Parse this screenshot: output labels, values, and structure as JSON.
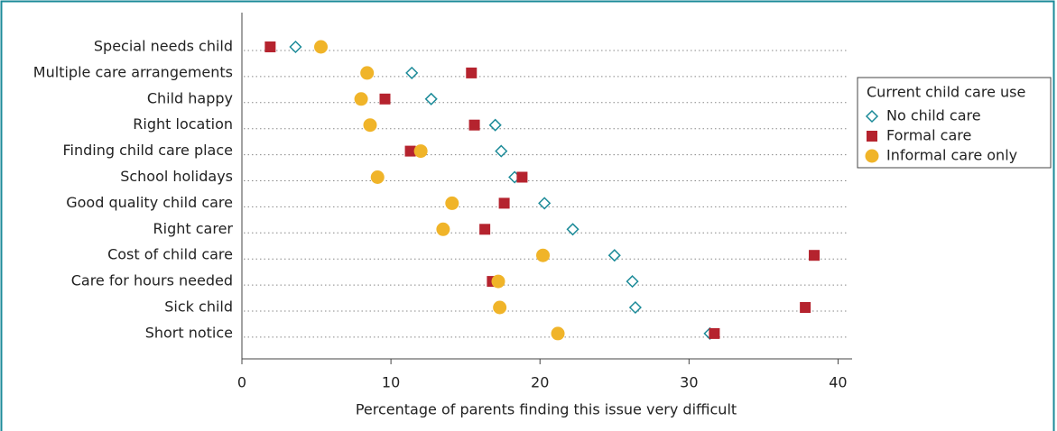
{
  "chart_data": {
    "type": "dot",
    "xlabel": "Percentage of parents finding this issue very difficult",
    "categories": [
      "Special needs child",
      "Multiple care arrangements",
      "Child happy",
      "Right location",
      "Finding child care place",
      "School holidays",
      "Good quality child care",
      "Right carer",
      "Cost of child care",
      "Care for hours needed",
      "Sick child",
      "Short notice"
    ],
    "series": [
      {
        "name": "No child care",
        "color": "#1b8a98",
        "marker": "diamond-open",
        "values": [
          3.6,
          11.4,
          12.7,
          17.0,
          17.4,
          18.3,
          20.3,
          22.2,
          25.0,
          26.2,
          26.4,
          31.4
        ]
      },
      {
        "name": "Formal care",
        "color": "#b5232e",
        "marker": "square",
        "values": [
          1.9,
          15.4,
          9.6,
          15.6,
          11.3,
          18.8,
          17.6,
          16.3,
          38.4,
          16.8,
          37.8,
          31.7
        ]
      },
      {
        "name": "Informal care only",
        "color": "#f0b429",
        "marker": "circle",
        "values": [
          5.3,
          8.4,
          8.0,
          8.6,
          12.0,
          9.1,
          14.1,
          13.5,
          20.2,
          17.2,
          17.3,
          21.2
        ]
      }
    ],
    "legend_title": "Current child care use",
    "legend": "right",
    "xlim": [
      0,
      40.7
    ],
    "xticks": [
      0,
      10,
      20,
      30,
      40
    ],
    "grid": true
  }
}
